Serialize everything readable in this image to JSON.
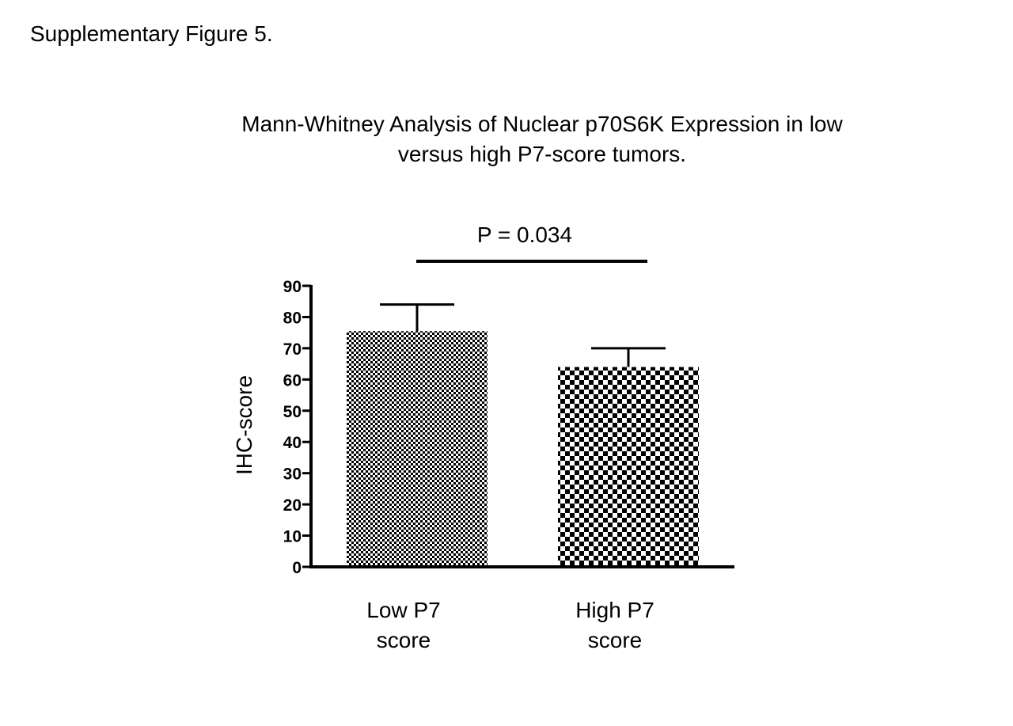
{
  "figure_label": "Supplementary Figure 5.",
  "chart_data": {
    "type": "bar",
    "title_lines": [
      "Mann-Whitney Analysis of Nuclear p70S6K Expression in low",
      "versus high P7-score tumors."
    ],
    "categories": [
      [
        "Low P7",
        "score"
      ],
      [
        "High P7",
        "score"
      ]
    ],
    "values": [
      75.5,
      64
    ],
    "error_upper": [
      84,
      70
    ],
    "bar_patterns": [
      "fine-checker",
      "coarse-checker"
    ],
    "ylabel": "IHC-score",
    "xlabel": "",
    "ylim": [
      0,
      90
    ],
    "yticks": [
      "0",
      "10",
      "20",
      "30",
      "40",
      "50",
      "60",
      "70",
      "80",
      "90"
    ],
    "grid": false,
    "significance": {
      "label": "P = 0.034",
      "between": [
        0,
        1
      ]
    }
  }
}
